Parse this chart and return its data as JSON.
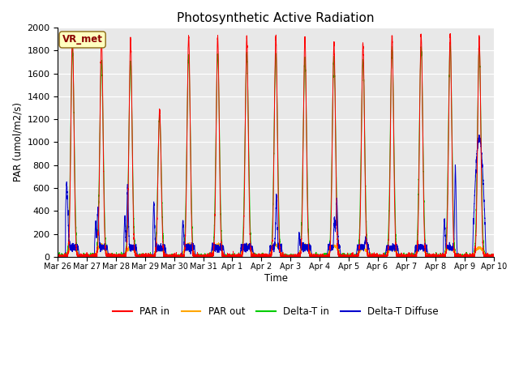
{
  "title": "Photosynthetic Active Radiation",
  "ylabel": "PAR (umol/m2/s)",
  "xlabel": "Time",
  "annotation": "VR_met",
  "ylim": [
    0,
    2000
  ],
  "plot_bg": "#e8e8e8",
  "fig_bg": "#ffffff",
  "legend": [
    "PAR in",
    "PAR out",
    "Delta-T in",
    "Delta-T Diffuse"
  ],
  "line_colors": [
    "#ff0000",
    "#ffa500",
    "#00cc00",
    "#0000cc"
  ],
  "n_days": 15,
  "tick_labels": [
    "Mar 26",
    "Mar 27",
    "Mar 28",
    "Mar 29",
    "Mar 30",
    "Mar 31",
    "Apr 1",
    "Apr 2",
    "Apr 3",
    "Apr 4",
    "Apr 5",
    "Apr 6",
    "Apr 7",
    "Apr 8",
    "Apr 9",
    "Apr 10"
  ]
}
